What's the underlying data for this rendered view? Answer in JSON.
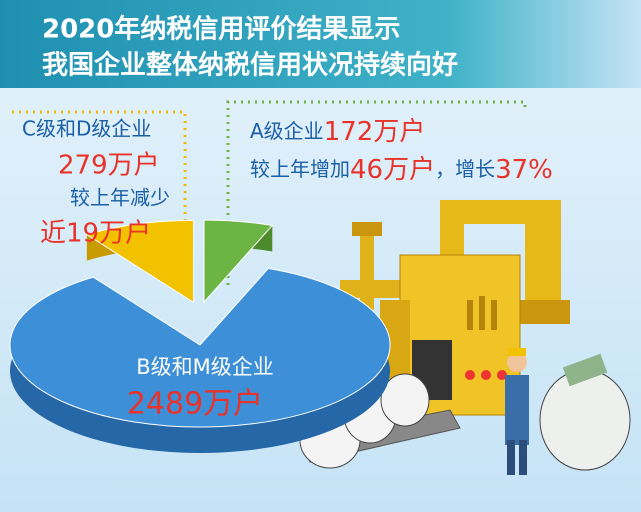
{
  "chart_data": {
    "type": "pie",
    "title": "2020年纳税信用评价结果显示",
    "subtitle": "我国企业整体纳税信用状况持续向好",
    "categories": [
      "A级企业",
      "C级和D级企业",
      "B级和M级企业"
    ],
    "values": [
      172,
      279,
      2489
    ],
    "value_labels": [
      "172万户",
      "279万户",
      "2489万户"
    ],
    "colors": [
      "#6cb545",
      "#f2c200",
      "#3d8fd8"
    ],
    "annotations": [
      "较上年增加",
      "46万户",
      "，增长",
      "37%",
      "较上年减少",
      "近19万户"
    ]
  }
}
